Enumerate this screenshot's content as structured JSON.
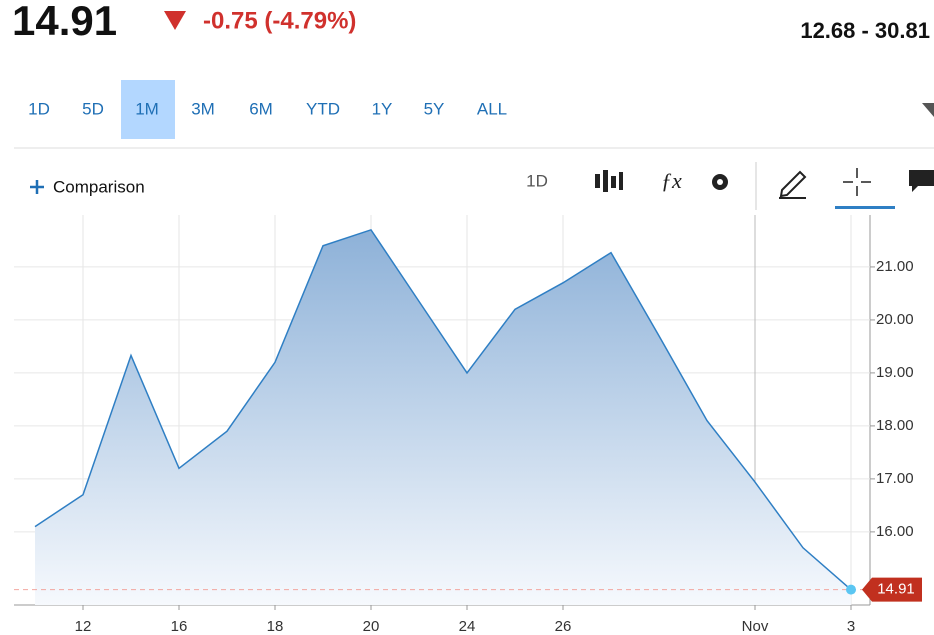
{
  "header": {
    "price": "14.91",
    "change": "-0.75 (-4.79%)",
    "range": "12.68 - 30.81"
  },
  "tabs": [
    "1D",
    "5D",
    "1M",
    "3M",
    "6M",
    "YTD",
    "1Y",
    "5Y",
    "ALL"
  ],
  "active_tab": 2,
  "toolbar": {
    "comparison": "Comparison",
    "interval": "1D"
  },
  "chart": {
    "type": "area",
    "categories": [
      null,
      "12",
      null,
      "16",
      null,
      "18",
      null,
      "20",
      null,
      "24",
      null,
      "26",
      null,
      null,
      null,
      "Nov",
      null,
      "3"
    ],
    "values": [
      16.1,
      16.7,
      19.33,
      17.2,
      17.9,
      19.2,
      21.4,
      21.7,
      20.35,
      19.0,
      20.2,
      20.7,
      21.27,
      19.7,
      18.1,
      16.94,
      15.7,
      14.91
    ],
    "color": "#2f7fc4",
    "ylim": [
      14.62,
      21.98
    ],
    "yticks": [
      {
        "value": 16,
        "label": "16.00"
      },
      {
        "value": 17,
        "label": "17.00"
      },
      {
        "value": 18,
        "label": "18.00"
      },
      {
        "value": 19,
        "label": "19.00"
      },
      {
        "value": 20,
        "label": "20.00"
      },
      {
        "value": 21,
        "label": "21.00"
      }
    ],
    "grid": true
  }
}
